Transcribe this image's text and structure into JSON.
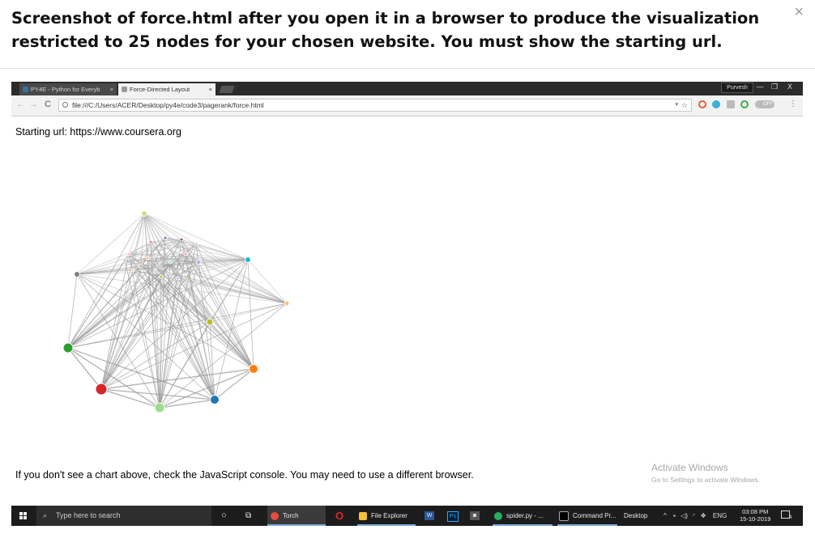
{
  "modal": {
    "title": "Screenshot of force.html after you open it in a browser to produce the visualization restricted to 25 nodes for your chosen website. You must show the starting url.",
    "close_glyph": "×"
  },
  "browser": {
    "tabs": [
      {
        "label": "PY4E - Python for Everyb",
        "active": false,
        "close": "×"
      },
      {
        "label": "Force-Directed Layout",
        "active": true,
        "close": "×"
      }
    ],
    "user": "Purvesh",
    "window_controls": [
      "—",
      "❐",
      "X"
    ],
    "nav": {
      "back": "←",
      "forward": "→",
      "reload": "C"
    },
    "url": "file:///C:/Users/ACER/Desktop/py4e/code3/pagerank/force.html",
    "bookmark_glyph": "☆",
    "dropdown_glyph": "▾",
    "toggle_label": "OFF",
    "menu_glyph": "⋮"
  },
  "page": {
    "starting_url_text": "Starting url: https://www.coursera.org",
    "footer_text": "If you don't see a chart above, check the JavaScript console. You may need to use a different browser."
  },
  "watermark": {
    "title": "Activate Windows",
    "subtitle": "Go to Settings to activate Windows."
  },
  "taskbar": {
    "search_placeholder": "Type here to search",
    "apps": [
      {
        "label": "Torch",
        "color": "#e74c3c"
      },
      {
        "label": "File Explorer",
        "color": "#f3c13a"
      },
      {
        "label": "spider.py - ...",
        "color": "#27ae60"
      },
      {
        "label": "Command Pr...",
        "color": "#555555"
      }
    ],
    "desktop_label": "Desktop",
    "language": "ENG",
    "time": "03:08 PM",
    "date": "15-10-2019",
    "notification_count": "4"
  },
  "graph": {
    "node_colors": [
      "#d62728",
      "#2ca02c",
      "#98df8a",
      "#1f77b4",
      "#ff7f0e",
      "#bcbd22",
      "#17becf",
      "#dbdb8d",
      "#7f7f7f",
      "#c5b0d5",
      "#ffbb78",
      "#e377c2",
      "#9467bd",
      "#8c564b",
      "#aec7e8",
      "#f7b6d2",
      "#c49c94",
      "#c7c7c7",
      "#9edae5",
      "#ff9896",
      "#bcbd22",
      "#dbdb8d",
      "#aec7e8",
      "#ffbb78",
      "#c5b0d5"
    ]
  }
}
